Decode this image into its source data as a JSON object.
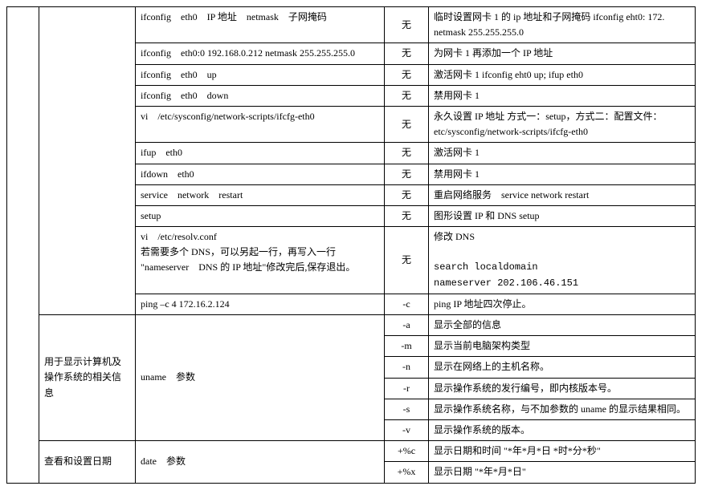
{
  "rows": [
    {
      "c3": "ifconfig　eth0　IP 地址　netmask　子网掩码",
      "c4": "无",
      "c5": "临时设置网卡 1 的 ip 地址和子网掩码 ifconfig eht0: 172. netmask 255.255.255.0"
    },
    {
      "c3": "ifconfig　eth0:0 192.168.0.212 netmask 255.255.255.0",
      "c4": "无",
      "c5": "为网卡 1 再添加一个 IP 地址"
    },
    {
      "c3": "ifconfig　eth0　up",
      "c4": "无",
      "c5": "激活网卡 1 ifconfig eht0 up; ifup eth0"
    },
    {
      "c3": "ifconfig　eth0　down",
      "c4": "无",
      "c5": "禁用网卡 1"
    },
    {
      "c3": "vi　/etc/sysconfig/network-scripts/ifcfg-eth0",
      "c4": "无",
      "c5": "永久设置 IP 地址 方式一：setup，方式二：配置文件：etc/sysconfig/network-scripts/ifcfg-eth0"
    },
    {
      "c3": "ifup　eth0",
      "c4": "无",
      "c5": "激活网卡 1"
    },
    {
      "c3": "ifdown　eth0",
      "c4": "无",
      "c5": "禁用网卡 1"
    },
    {
      "c3": "service　network　restart",
      "c4": "无",
      "c5": "重启网络服务　service network restart"
    },
    {
      "c3": "setup",
      "c4": "无",
      "c5": "图形设置 IP 和 DNS setup"
    },
    {
      "c3_multi": [
        "vi　/etc/resolv.conf",
        "若需要多个 DNS，可以另起一行，再写入一行 \"nameserver　DNS 的 IP 地址\"修改完后,保存退出。"
      ],
      "c4": "无",
      "c5_multi": [
        "修改 DNS",
        "",
        "search localdomain",
        "nameserver 202.106.46.151"
      ],
      "c5_mono_from": 2
    },
    {
      "c3": "ping –c 4 172.16.2.124",
      "c4": "-c",
      "c5": "ping IP 地址四次停止。"
    }
  ],
  "uname": {
    "label": "用于显示计算机及操作系统的相关信息",
    "cmd": "uname　参数",
    "opts": [
      {
        "p": "-a",
        "d": "显示全部的信息"
      },
      {
        "p": "-m",
        "d": "显示当前电脑架构类型"
      },
      {
        "p": "-n",
        "d": "显示在网络上的主机名称。"
      },
      {
        "p": "-r",
        "d": "显示操作系统的发行编号，即内核版本号。"
      },
      {
        "p": "-s",
        "d": "显示操作系统名称，与不加参数的 uname 的显示结果相同。"
      },
      {
        "p": "-v",
        "d": "显示操作系统的版本。"
      }
    ]
  },
  "date": {
    "label": "查看和设置日期",
    "cmd": "date　参数",
    "opts": [
      {
        "p": "+%c",
        "d": "显示日期和时间 \"*年*月*日 *时*分*秒\""
      },
      {
        "p": "+%x",
        "d": "显示日期 \"*年*月*日\""
      }
    ]
  }
}
